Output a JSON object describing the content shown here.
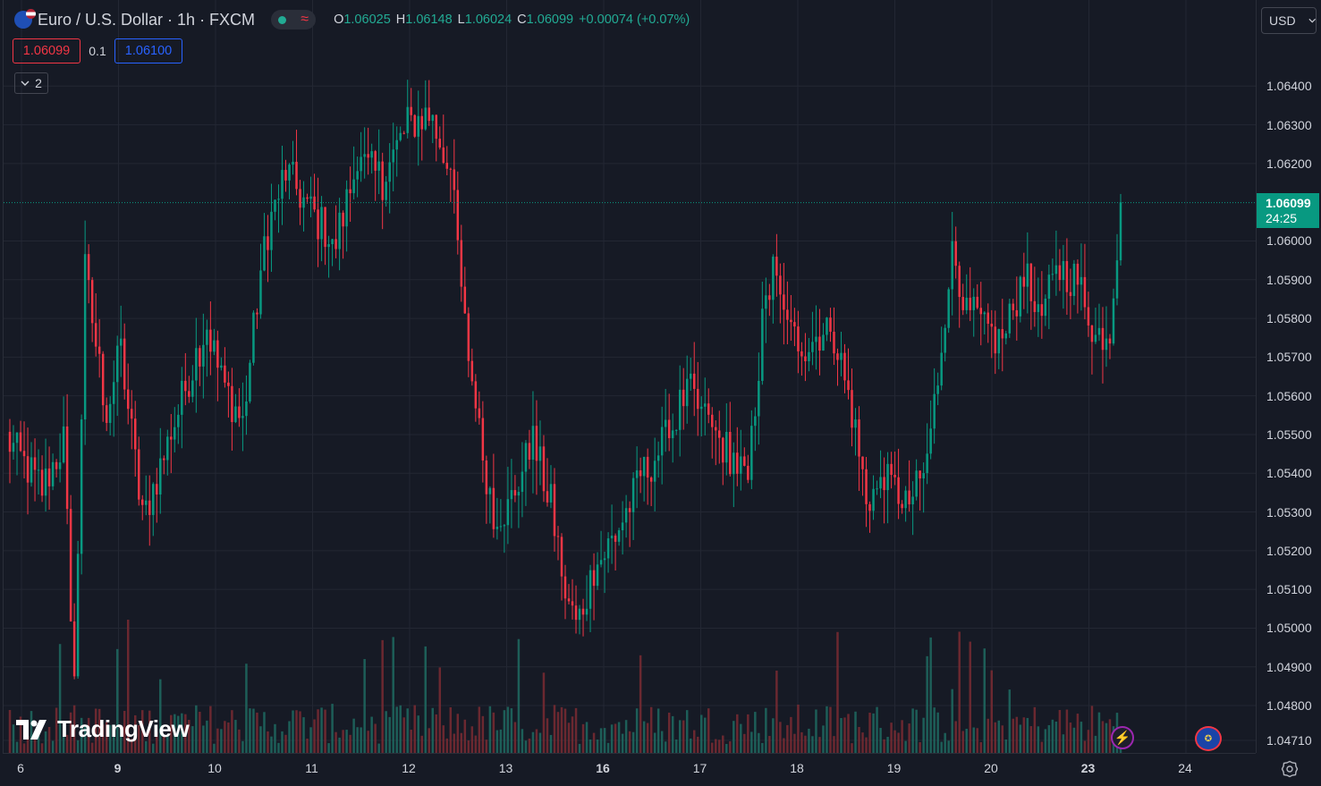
{
  "legend": {
    "title": "Euro / U.S. Dollar · 1h · FXCM",
    "ohlc": [
      {
        "k": "O",
        "v": "1.06025"
      },
      {
        "k": "H",
        "v": "1.06148"
      },
      {
        "k": "L",
        "v": "1.06024"
      },
      {
        "k": "C",
        "v": "1.06099"
      }
    ],
    "change": "+0.00074 (+0.07%)",
    "flag_icon": "eur-usd-flag-icon",
    "status_icon": "market-open-dot-icon"
  },
  "trade": {
    "sell_price": "1.06099",
    "spread": "0.1",
    "buy_price": "1.06100"
  },
  "indicators_toggle": {
    "label": "2"
  },
  "currency_selector": {
    "label": "USD"
  },
  "current_price": {
    "price": "1.06099",
    "countdown": "24:25",
    "color": "#089981"
  },
  "brand": {
    "name": "TradingView"
  },
  "colors": {
    "up": "#089981",
    "down": "#f23645",
    "up_volume": "#1f6b62",
    "down_volume": "#7a2b33",
    "background": "#161a25",
    "grid": "#232733"
  },
  "chart_data": {
    "type": "candlestick",
    "symbol": "EURUSD",
    "interval": "1h",
    "ylim": [
      1.0471,
      1.0653
    ],
    "price_ticks": [
      "1.06400",
      "1.06300",
      "1.06200",
      "1.06000",
      "1.05900",
      "1.05800",
      "1.05700",
      "1.05600",
      "1.05500",
      "1.05400",
      "1.05300",
      "1.05200",
      "1.05100",
      "1.05000",
      "1.04900",
      "1.04800",
      "1.04710"
    ],
    "time_ticks": [
      {
        "label": "6",
        "bold": false
      },
      {
        "label": "9",
        "bold": true
      },
      {
        "label": "10",
        "bold": false
      },
      {
        "label": "11",
        "bold": false
      },
      {
        "label": "12",
        "bold": false
      },
      {
        "label": "13",
        "bold": false
      },
      {
        "label": "16",
        "bold": true
      },
      {
        "label": "17",
        "bold": false
      },
      {
        "label": "18",
        "bold": false
      },
      {
        "label": "19",
        "bold": false
      },
      {
        "label": "20",
        "bold": false
      },
      {
        "label": "23",
        "bold": true
      },
      {
        "label": "24",
        "bold": false
      }
    ],
    "close_waypoints": [
      {
        "bar": 0,
        "close": 1.0549
      },
      {
        "bar": 10,
        "close": 1.0536
      },
      {
        "bar": 16,
        "close": 1.0548
      },
      {
        "bar": 19,
        "close": 1.0485
      },
      {
        "bar": 22,
        "close": 1.0592
      },
      {
        "bar": 28,
        "close": 1.0555
      },
      {
        "bar": 32,
        "close": 1.0572
      },
      {
        "bar": 38,
        "close": 1.0528
      },
      {
        "bar": 46,
        "close": 1.055
      },
      {
        "bar": 52,
        "close": 1.0568
      },
      {
        "bar": 56,
        "close": 1.0578
      },
      {
        "bar": 60,
        "close": 1.0564
      },
      {
        "bar": 66,
        "close": 1.0553
      },
      {
        "bar": 72,
        "close": 1.06
      },
      {
        "bar": 78,
        "close": 1.0618
      },
      {
        "bar": 86,
        "close": 1.0606
      },
      {
        "bar": 92,
        "close": 1.06
      },
      {
        "bar": 98,
        "close": 1.062
      },
      {
        "bar": 105,
        "close": 1.0616
      },
      {
        "bar": 112,
        "close": 1.063
      },
      {
        "bar": 118,
        "close": 1.0633
      },
      {
        "bar": 124,
        "close": 1.0618
      },
      {
        "bar": 128,
        "close": 1.0578
      },
      {
        "bar": 132,
        "close": 1.055
      },
      {
        "bar": 136,
        "close": 1.053
      },
      {
        "bar": 140,
        "close": 1.0531
      },
      {
        "bar": 147,
        "close": 1.0548
      },
      {
        "bar": 152,
        "close": 1.0532
      },
      {
        "bar": 156,
        "close": 1.051
      },
      {
        "bar": 159,
        "close": 1.05
      },
      {
        "bar": 164,
        "close": 1.0515
      },
      {
        "bar": 170,
        "close": 1.0524
      },
      {
        "bar": 178,
        "close": 1.054
      },
      {
        "bar": 185,
        "close": 1.055
      },
      {
        "bar": 190,
        "close": 1.0562
      },
      {
        "bar": 196,
        "close": 1.0552
      },
      {
        "bar": 202,
        "close": 1.0545
      },
      {
        "bar": 207,
        "close": 1.0538
      },
      {
        "bar": 211,
        "close": 1.0578
      },
      {
        "bar": 214,
        "close": 1.0592
      },
      {
        "bar": 218,
        "close": 1.0576
      },
      {
        "bar": 224,
        "close": 1.0573
      },
      {
        "bar": 230,
        "close": 1.058
      },
      {
        "bar": 236,
        "close": 1.0556
      },
      {
        "bar": 240,
        "close": 1.0534
      },
      {
        "bar": 246,
        "close": 1.0537
      },
      {
        "bar": 252,
        "close": 1.0533
      },
      {
        "bar": 256,
        "close": 1.0538
      },
      {
        "bar": 260,
        "close": 1.0565
      },
      {
        "bar": 264,
        "close": 1.06
      },
      {
        "bar": 268,
        "close": 1.0582
      },
      {
        "bar": 274,
        "close": 1.0577
      },
      {
        "bar": 278,
        "close": 1.0573
      },
      {
        "bar": 284,
        "close": 1.0592
      },
      {
        "bar": 288,
        "close": 1.0579
      },
      {
        "bar": 294,
        "close": 1.0593
      },
      {
        "bar": 300,
        "close": 1.0589
      },
      {
        "bar": 304,
        "close": 1.0575
      },
      {
        "bar": 308,
        "close": 1.0578
      },
      {
        "bar": 311,
        "close": 1.061
      }
    ],
    "total_bars": 312
  }
}
